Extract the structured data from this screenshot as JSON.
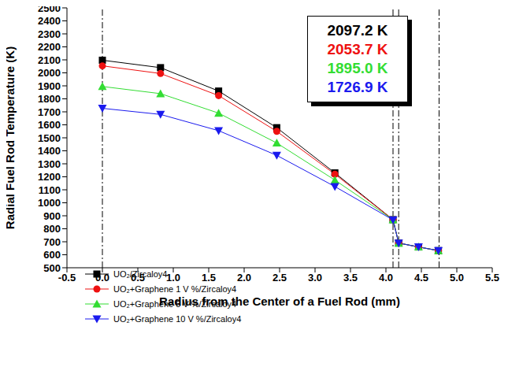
{
  "chart_data": {
    "type": "line",
    "x_label": "Radius from the Center of a Fuel Rod (mm)",
    "y_label": "Radial Fuel Rod Temperature (K)",
    "x": [
      0,
      0.82,
      1.64,
      2.46,
      3.28,
      4.1,
      4.18,
      4.46,
      4.74
    ],
    "series": [
      {
        "name": "UO₂/Zircaloy4",
        "color": "#000000",
        "marker": "square",
        "annotation": "2097.2 K",
        "values": [
          2097.2,
          2040,
          1860,
          1578,
          1230,
          870,
          690,
          660,
          632
        ]
      },
      {
        "name": "UO₂+Graphene 1 V %/Zircaloy4",
        "color": "#ee1111",
        "marker": "circle",
        "annotation": "2053.7 K",
        "values": [
          2053.7,
          1995,
          1825,
          1550,
          1220,
          870,
          690,
          660,
          632
        ]
      },
      {
        "name": "UO₂+Graphene 5 V %/Zircaloy4",
        "color": "#33dd33",
        "marker": "triangle-up",
        "annotation": "1895.0 K",
        "values": [
          1895.0,
          1840,
          1690,
          1460,
          1175,
          870,
          690,
          660,
          632
        ]
      },
      {
        "name": "UO₂+Graphene 10 V %/Zircaloy4",
        "color": "#1a1aee",
        "marker": "triangle-down",
        "annotation": "1726.9 K",
        "values": [
          1726.9,
          1680,
          1555,
          1365,
          1125,
          868,
          690,
          660,
          632
        ]
      }
    ],
    "reference_lines": [
      0,
      4.1,
      4.18,
      4.75
    ],
    "reference_line_style": "dashdot",
    "xlim": [
      -0.5,
      5.5
    ],
    "xticks": [
      -0.5,
      {
        "value": 0,
        "label": "0.0"
      },
      0.5,
      {
        "value": 1,
        "label": "1.0"
      },
      1.5,
      {
        "value": 2,
        "label": "2.0"
      },
      2.5,
      {
        "value": 3,
        "label": "3.0"
      },
      3.5,
      {
        "value": 4,
        "label": "4.0"
      },
      4.5,
      {
        "value": 5,
        "label": "5.0"
      },
      5.5
    ],
    "ylim": [
      500,
      2500
    ],
    "yticks": [
      500,
      600,
      700,
      800,
      900,
      1000,
      1100,
      1200,
      1300,
      1400,
      1500,
      1600,
      1700,
      1800,
      1900,
      2000,
      2100,
      2200,
      2300,
      2400,
      2500
    ],
    "grid": false,
    "legend": "lower left"
  }
}
